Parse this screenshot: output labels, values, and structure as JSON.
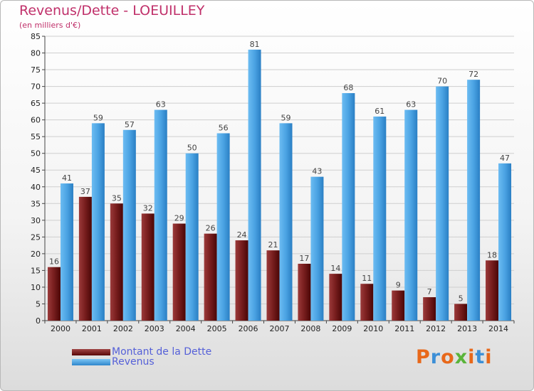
{
  "header": {
    "title": "Revenus/Dette - LOEUILLEY",
    "subtitle": "(en milliers d'€)"
  },
  "legend": {
    "items": [
      {
        "label": "Montant de la Dette",
        "color": "#7a1a1a"
      },
      {
        "label": "Revenus",
        "color": "#4ba3e3"
      }
    ]
  },
  "logo": {
    "text": "Proxiti",
    "colors": [
      "#e8681a",
      "#3c8fd6",
      "#e8681a",
      "#5ab43a",
      "#e8681a",
      "#3c8fd6",
      "#e8681a"
    ]
  },
  "chart_data": {
    "type": "bar",
    "title": "Revenus/Dette - LOEUILLEY",
    "subtitle": "(en milliers d'€)",
    "xlabel": "",
    "ylabel": "",
    "ylim": [
      0,
      85
    ],
    "ytick_step": 5,
    "grid": true,
    "legend_position": "bottom-left",
    "categories": [
      "2000",
      "2001",
      "2002",
      "2003",
      "2004",
      "2005",
      "2006",
      "2007",
      "2008",
      "2009",
      "2010",
      "2011",
      "2012",
      "2013",
      "2014"
    ],
    "series": [
      {
        "name": "Montant de la Dette",
        "color": "#7a1a1a",
        "values": [
          16,
          37,
          35,
          32,
          29,
          26,
          24,
          21,
          17,
          14,
          11,
          9,
          7,
          5,
          18
        ]
      },
      {
        "name": "Revenus",
        "color": "#4ba3e3",
        "values": [
          41,
          59,
          57,
          63,
          50,
          56,
          81,
          59,
          43,
          68,
          61,
          63,
          70,
          72,
          47
        ]
      }
    ]
  }
}
